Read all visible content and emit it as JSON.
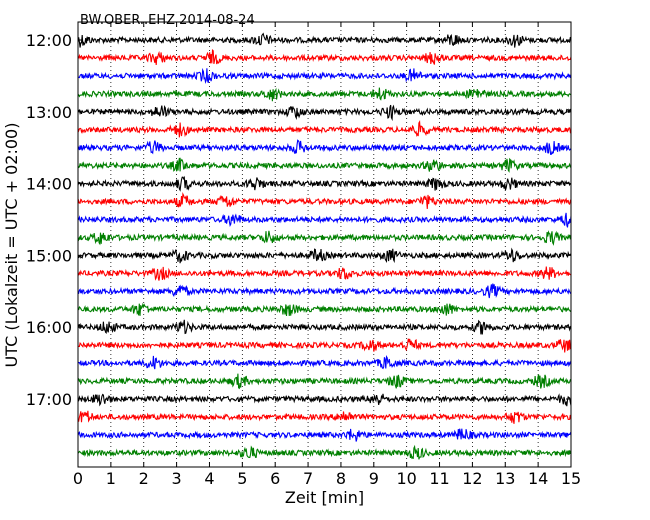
{
  "chart_data": {
    "type": "line",
    "subtype": "helicorder",
    "title": "BW.OBER..EHZ 2014-08-24",
    "xlabel": "Zeit  [min]",
    "ylabel": "UTC (Lokalzeit = UTC + 02:00)",
    "xlim": [
      0,
      15
    ],
    "x_ticks": [
      0,
      1,
      2,
      3,
      4,
      5,
      6,
      7,
      8,
      9,
      10,
      11,
      12,
      13,
      14,
      15
    ],
    "x_tick_labels": [
      "0",
      "1",
      "2",
      "3",
      "4",
      "5",
      "6",
      "7",
      "8",
      "9",
      "10",
      "11",
      "12",
      "13",
      "14",
      "15"
    ],
    "y_tick_labels": [
      "12:00",
      "13:00",
      "14:00",
      "15:00",
      "16:00",
      "17:00"
    ],
    "y_tick_rows": [
      0,
      4,
      8,
      12,
      16,
      20
    ],
    "grid": "vertical dotted",
    "trace_minutes": 15,
    "colors_cycle": [
      "#000000",
      "#ff0000",
      "#0000ff",
      "#008000"
    ],
    "rows": [
      {
        "start": "12:00",
        "color": "#000000",
        "events": [
          0.1,
          5.6,
          11.4,
          13.3
        ]
      },
      {
        "start": "12:15",
        "color": "#ff0000",
        "events": [
          2.4,
          4.1,
          10.8
        ]
      },
      {
        "start": "12:30",
        "color": "#0000ff",
        "events": [
          3.9,
          10.2
        ]
      },
      {
        "start": "12:45",
        "color": "#008000",
        "events": [
          5.9,
          9.2,
          12.1
        ]
      },
      {
        "start": "13:00",
        "color": "#000000",
        "events": [
          2.5,
          6.6,
          9.5
        ]
      },
      {
        "start": "13:15",
        "color": "#ff0000",
        "events": [
          3.1,
          10.4
        ]
      },
      {
        "start": "13:30",
        "color": "#0000ff",
        "events": [
          2.3,
          6.7,
          14.4
        ]
      },
      {
        "start": "13:45",
        "color": "#008000",
        "events": [
          3.1,
          10.8,
          13.1
        ]
      },
      {
        "start": "14:00",
        "color": "#000000",
        "events": [
          3.2,
          5.4,
          10.9,
          13.1
        ]
      },
      {
        "start": "14:15",
        "color": "#ff0000",
        "events": [
          3.2,
          4.5,
          10.6
        ]
      },
      {
        "start": "14:30",
        "color": "#0000ff",
        "events": [
          4.7,
          14.9
        ]
      },
      {
        "start": "14:45",
        "color": "#008000",
        "events": [
          0.7,
          5.8,
          14.4
        ]
      },
      {
        "start": "15:00",
        "color": "#000000",
        "events": [
          3.1,
          7.3,
          9.5,
          13.2
        ]
      },
      {
        "start": "15:15",
        "color": "#ff0000",
        "events": [
          2.5,
          8.1,
          14.3
        ]
      },
      {
        "start": "15:30",
        "color": "#0000ff",
        "events": [
          3.1,
          12.6
        ]
      },
      {
        "start": "15:45",
        "color": "#008000",
        "events": [
          1.9,
          6.4,
          11.2
        ]
      },
      {
        "start": "16:00",
        "color": "#000000",
        "events": [
          0.9,
          3.2,
          12.3
        ]
      },
      {
        "start": "16:15",
        "color": "#ff0000",
        "events": [
          8.9,
          10.1,
          14.8
        ]
      },
      {
        "start": "16:30",
        "color": "#0000ff",
        "events": [
          2.3,
          9.4
        ]
      },
      {
        "start": "16:45",
        "color": "#008000",
        "events": [
          4.9,
          9.7,
          14.1
        ]
      },
      {
        "start": "17:00",
        "color": "#000000",
        "events": [
          0.7,
          9.1,
          14.9
        ]
      },
      {
        "start": "17:15",
        "color": "#ff0000",
        "events": [
          0.2,
          8.1,
          13.3
        ]
      },
      {
        "start": "17:30",
        "color": "#0000ff",
        "events": [
          8.4,
          11.7
        ]
      },
      {
        "start": "17:45",
        "color": "#008000",
        "events": [
          5.2,
          10.3
        ]
      }
    ]
  }
}
